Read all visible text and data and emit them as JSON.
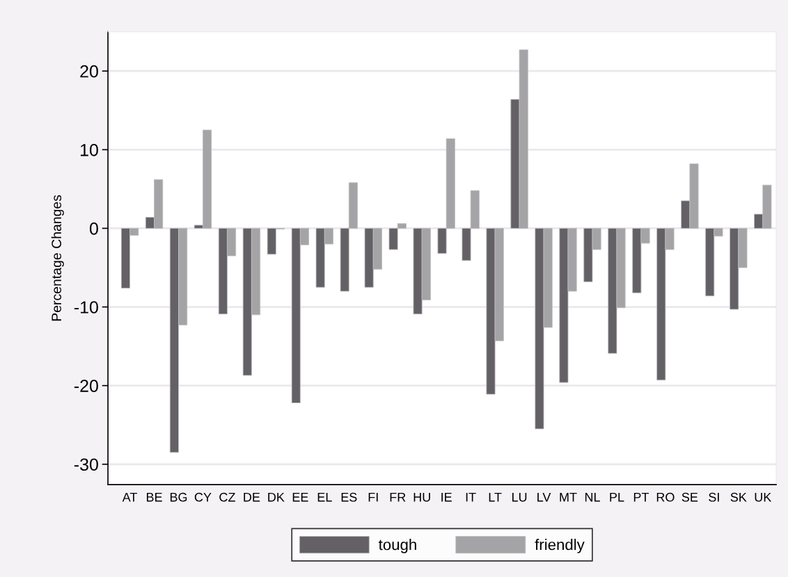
{
  "chart_data": {
    "type": "bar",
    "ylabel": "Percentage Changes",
    "categories": [
      "AT",
      "BE",
      "BG",
      "CY",
      "CZ",
      "DE",
      "DK",
      "EE",
      "EL",
      "ES",
      "FI",
      "FR",
      "HU",
      "IE",
      "IT",
      "LT",
      "LU",
      "LV",
      "MT",
      "NL",
      "PL",
      "PT",
      "RO",
      "SE",
      "SI",
      "SK",
      "UK"
    ],
    "series": [
      {
        "name": "tough",
        "color": "#636165",
        "values": [
          -7.6,
          1.4,
          -28.5,
          0.4,
          -10.9,
          -18.7,
          -3.3,
          -22.2,
          -7.5,
          -8.0,
          -7.5,
          -2.7,
          -10.9,
          -3.2,
          -4.1,
          -21.1,
          16.4,
          -25.5,
          -19.6,
          -6.8,
          -15.9,
          -8.2,
          -19.3,
          3.5,
          -8.6,
          -10.3,
          1.8
        ]
      },
      {
        "name": "friendly",
        "color": "#a4a3a6",
        "values": [
          -0.9,
          6.2,
          -12.3,
          12.5,
          -3.5,
          -11.0,
          -0.1,
          -2.1,
          -2.0,
          5.8,
          -5.2,
          0.6,
          -9.1,
          11.4,
          4.8,
          -14.3,
          22.7,
          -12.6,
          -8.0,
          -2.7,
          -10.1,
          -1.9,
          -2.7,
          8.2,
          -1.0,
          -5.0,
          5.5
        ]
      }
    ],
    "ylim": [
      -32.6,
      25
    ],
    "yticks": [
      -30,
      -20,
      -10,
      0,
      10,
      20
    ],
    "grid": "y",
    "legend": "bottom"
  }
}
